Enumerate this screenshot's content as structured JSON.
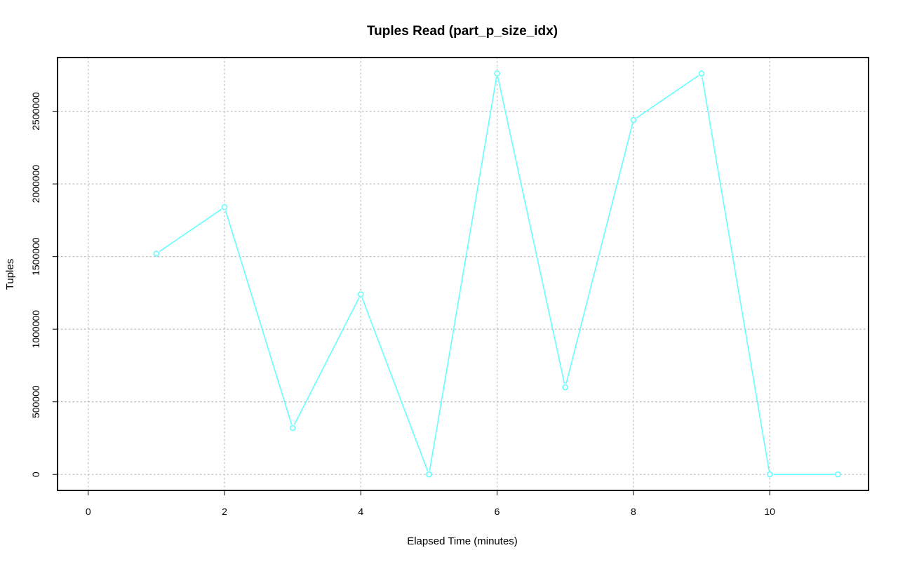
{
  "chart_data": {
    "type": "line",
    "title": "Tuples Read (part_p_size_idx)",
    "xlabel": "Elapsed Time (minutes)",
    "ylabel": "Tuples",
    "xlim": [
      -0.45,
      11.45
    ],
    "ylim": [
      -110000,
      2870000
    ],
    "xticks": [
      0,
      2,
      4,
      6,
      8,
      10
    ],
    "yticks": [
      0,
      500000,
      1000000,
      1500000,
      2000000,
      2500000
    ],
    "grid": true,
    "series": [
      {
        "color": "#66ffff",
        "x": [
          1,
          2,
          3,
          4,
          5,
          6,
          7,
          8,
          9,
          10,
          11
        ],
        "values": [
          1520000,
          1840000,
          320000,
          1240000,
          0,
          2760000,
          600000,
          2440000,
          2760000,
          0,
          0
        ]
      }
    ]
  }
}
